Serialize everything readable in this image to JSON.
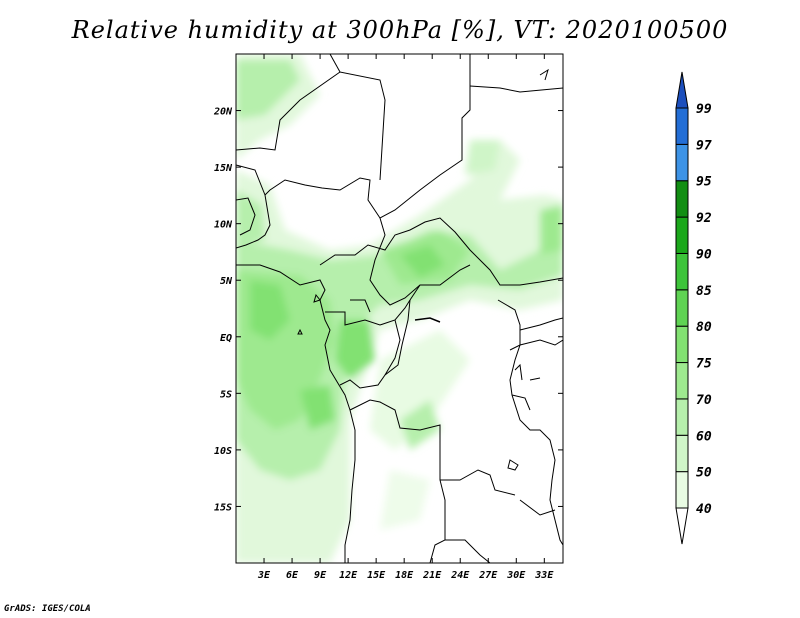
{
  "title": "Relative humidity at 300hPa [%], VT: 2020100500",
  "credit": "GrADS: IGES/COLA",
  "map": {
    "lon_range": [
      0,
      35
    ],
    "lat_range": [
      -20,
      25
    ],
    "lat_ticks": [
      "20N",
      "15N",
      "10N",
      "5N",
      "EQ",
      "5S",
      "10S",
      "15S"
    ],
    "lat_tick_values": [
      20,
      15,
      10,
      5,
      0,
      -5,
      -10,
      -15
    ],
    "lon_ticks": [
      "3E",
      "6E",
      "9E",
      "12E",
      "15E",
      "18E",
      "21E",
      "24E",
      "27E",
      "30E",
      "33E"
    ],
    "lon_tick_values": [
      3,
      6,
      9,
      12,
      15,
      18,
      21,
      24,
      27,
      30,
      33
    ]
  },
  "colorbar": {
    "labels": [
      "40",
      "50",
      "60",
      "70",
      "75",
      "80",
      "85",
      "90",
      "92",
      "95",
      "97",
      "99"
    ],
    "colors": [
      "#ffffff",
      "#e8fbe3",
      "#cff5c8",
      "#b6efac",
      "#9ee98f",
      "#82e172",
      "#5fd353",
      "#3dc43a",
      "#1ba81b",
      "#128e13",
      "#3d93e6",
      "#236ed6",
      "#1c4fbd"
    ]
  }
}
